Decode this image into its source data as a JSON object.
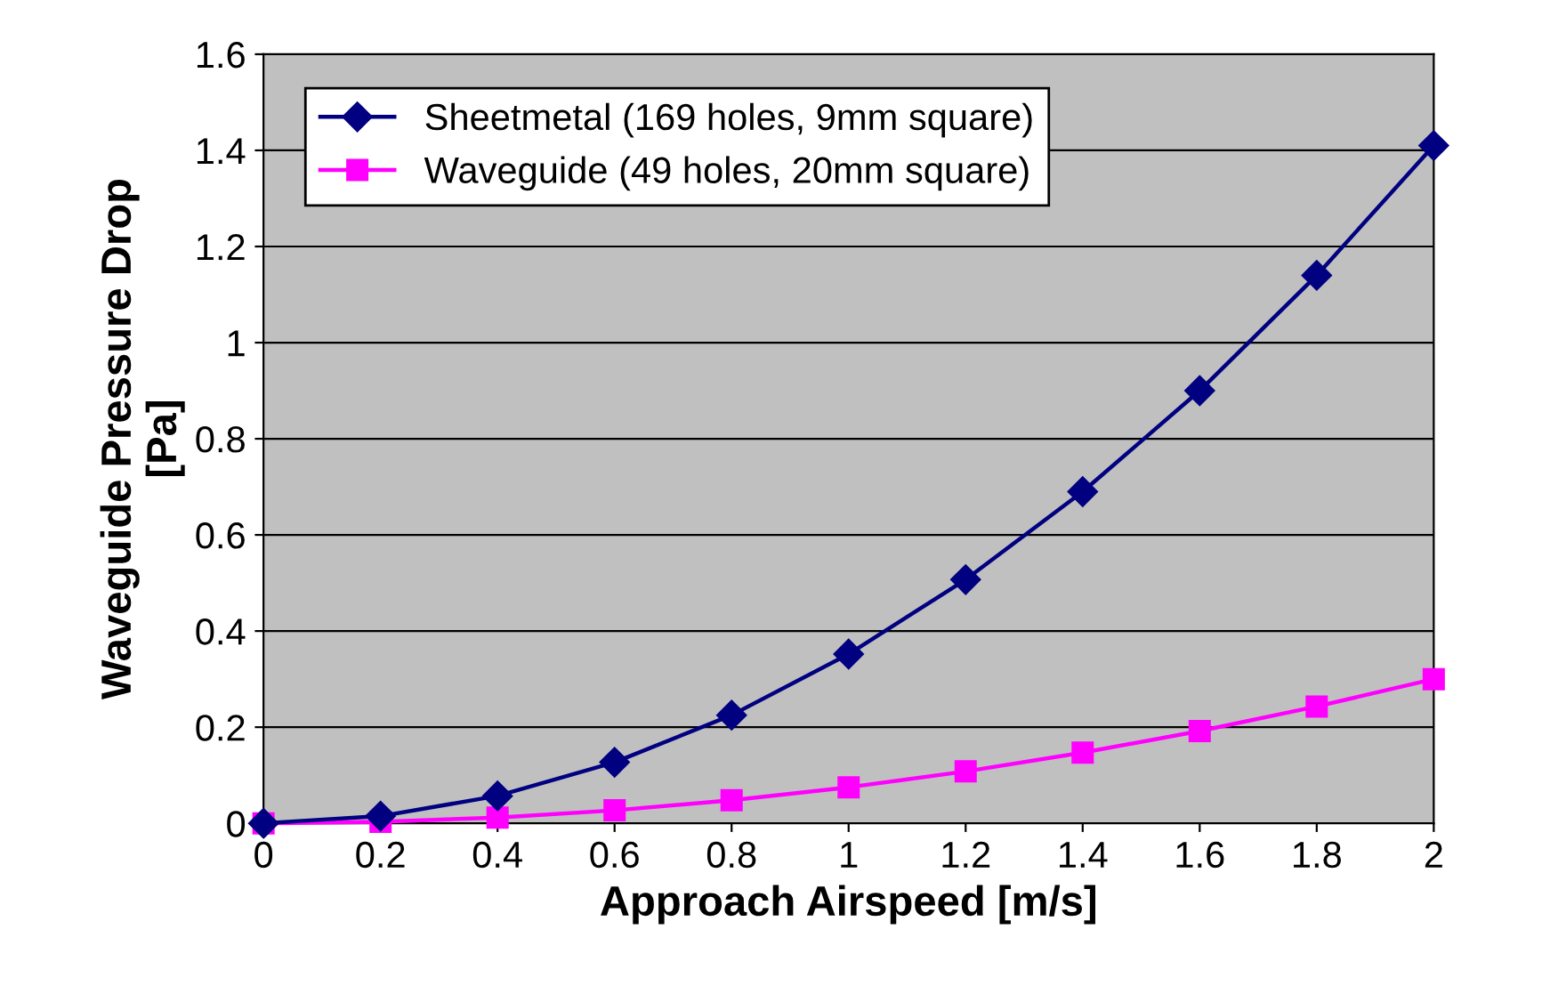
{
  "chart_data": {
    "type": "line",
    "xlabel": "Approach Airspeed [m/s]",
    "ylabel": "Waveguide Pressure Drop\n[Pa]",
    "x": [
      0,
      0.2,
      0.4,
      0.6,
      0.8,
      1,
      1.2,
      1.4,
      1.6,
      1.8,
      2
    ],
    "series": [
      {
        "name": "Sheetmetal (169 holes, 9mm square)",
        "color": "#000080",
        "marker": "diamond",
        "values": [
          0,
          0.015,
          0.057,
          0.127,
          0.225,
          0.352,
          0.507,
          0.69,
          0.9,
          1.14,
          1.41
        ]
      },
      {
        "name": "Waveguide (49 holes, 20mm square)",
        "color": "#ff00ff",
        "marker": "square",
        "values": [
          0,
          0.003,
          0.012,
          0.027,
          0.048,
          0.075,
          0.108,
          0.147,
          0.192,
          0.243,
          0.3
        ]
      }
    ],
    "xlim": [
      0,
      2
    ],
    "xticks": [
      0,
      0.2,
      0.4,
      0.6,
      0.8,
      1,
      1.2,
      1.4,
      1.6,
      1.8,
      2
    ],
    "ylim": [
      0,
      1.6
    ],
    "yticks": [
      0,
      0.2,
      0.4,
      0.6,
      0.8,
      1,
      1.2,
      1.4,
      1.6
    ],
    "grid": "y",
    "legend": "top left",
    "line_style": "solid"
  }
}
